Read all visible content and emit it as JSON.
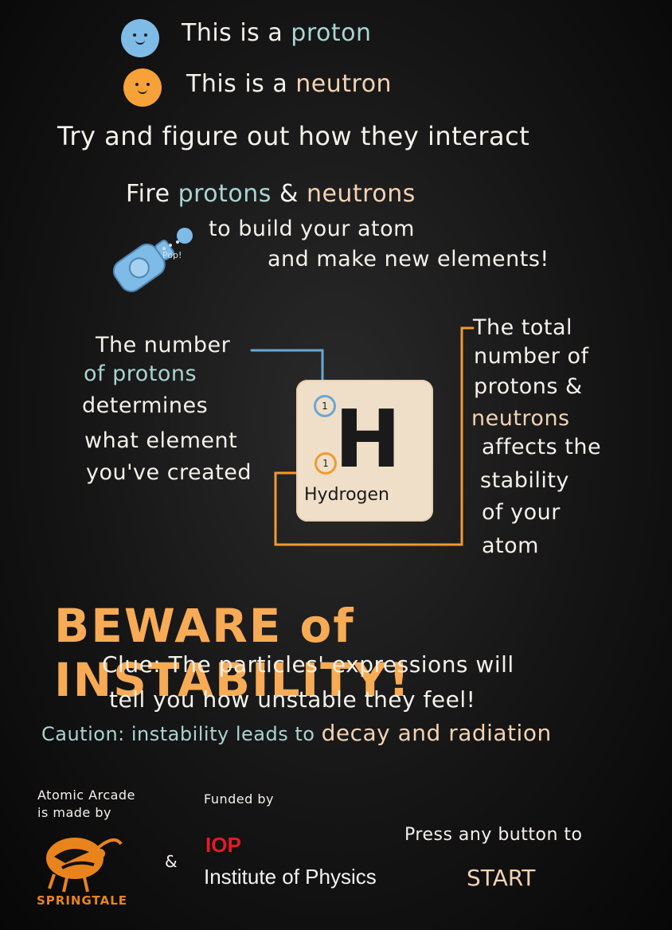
{
  "legend": {
    "proton_prefix": "This is a",
    "proton_word": "proton",
    "neutron_prefix": "This is a",
    "neutron_word": "neutron",
    "figure_out": "Try and figure out how they interact"
  },
  "fire": {
    "fire_word": "Fire",
    "protons_word": "protons",
    "amp": "&",
    "neutrons_word": "neutrons",
    "line2": "to build your atom",
    "line3": "and make new elements!",
    "pop": "Pop!"
  },
  "left_note": {
    "l1": "The number",
    "l2": "of protons",
    "l3": "determines",
    "l4": "what element",
    "l5": "you've created"
  },
  "right_note": {
    "l1": "The total",
    "l2": "number of",
    "l3": "protons &",
    "l4": "neutrons",
    "l5": "affects the",
    "l6": "stability",
    "l7": "of your",
    "l8": "atom"
  },
  "element_tile": {
    "symbol": "H",
    "name": "Hydrogen",
    "proton_count": "1",
    "nucleon_count": "1"
  },
  "warning": {
    "beware": "BEWARE of INSTABILITY!",
    "clue1": "Clue: The particles' expressions will",
    "clue2": "tell you how unstable they feel!",
    "caution_a": "Caution: instability leads to",
    "caution_b": "decay and radiation"
  },
  "footer": {
    "made_by_1": "Atomic Arcade",
    "made_by_2": "is made by",
    "springtale": "SPRINGTALE",
    "amp": "&",
    "funded_by": "Funded by",
    "iop_short": "IOP",
    "iop_full": "Institute of Physics",
    "press": "Press any button to",
    "start": "START"
  },
  "colors": {
    "proton": "#7ebbe6",
    "neutron": "#f7a238",
    "chalk_blue": "#a9d4d1",
    "chalk_peach": "#f3d2b3",
    "warning_orange": "#f7ab55",
    "iop_red": "#e31b23"
  }
}
